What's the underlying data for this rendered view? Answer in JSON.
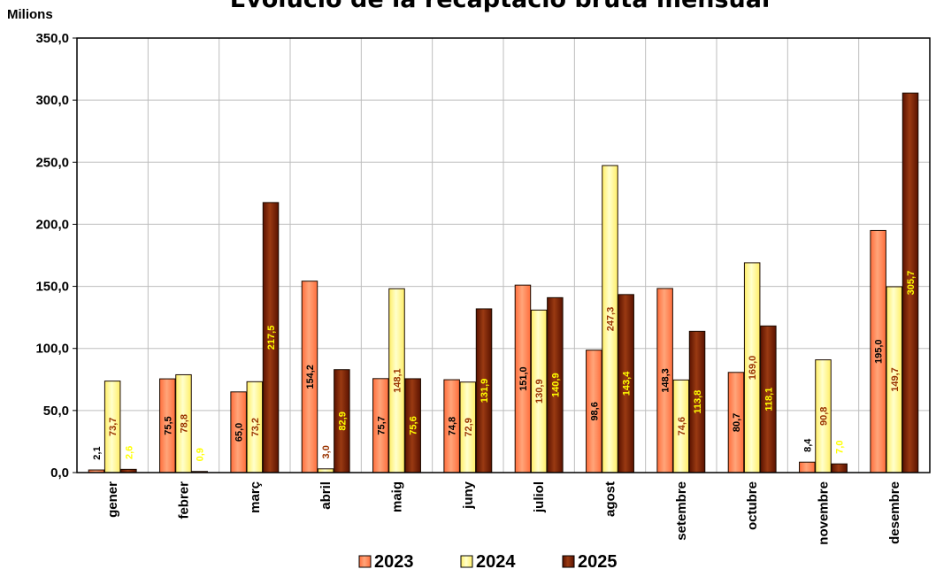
{
  "chart_data": {
    "type": "bar",
    "title": "Evolució de la recaptació bruta mensual",
    "unit_label": "Milions",
    "ylim": [
      0,
      350
    ],
    "yticks": [
      "0,0",
      "50,0",
      "100,0",
      "150,0",
      "200,0",
      "250,0",
      "300,0",
      "350,0"
    ],
    "grid": true,
    "legend_position": "bottom",
    "categories": [
      "gener",
      "febrer",
      "març",
      "abril",
      "maig",
      "juny",
      "juliol",
      "agost",
      "setembre",
      "octubre",
      "novembre",
      "desembre"
    ],
    "series": [
      {
        "name": "2023",
        "color": "#ff8c5a",
        "label_color": "#000000",
        "values": [
          2.1,
          75.5,
          65.0,
          154.2,
          75.7,
          74.8,
          151.0,
          98.6,
          148.3,
          80.7,
          8.4,
          195.0
        ],
        "labels": [
          "2,1",
          "75,5",
          "65,0",
          "154,2",
          "75,7",
          "74,8",
          "151,0",
          "98,6",
          "148,3",
          "80,7",
          "8,4",
          "195,0"
        ]
      },
      {
        "name": "2024",
        "color": "#ffff99",
        "label_color": "#993300",
        "values": [
          73.7,
          78.8,
          73.2,
          3.0,
          148.1,
          72.9,
          130.9,
          247.3,
          74.6,
          169.0,
          90.8,
          149.7
        ],
        "labels": [
          "73,7",
          "78,8",
          "73,2",
          "3,0",
          "148,1",
          "72,9",
          "130,9",
          "247,3",
          "74,6",
          "169,0",
          "90,8",
          "149,7"
        ]
      },
      {
        "name": "2025",
        "color": "#7a1f05",
        "label_color": "#ffff00",
        "values": [
          2.6,
          0.9,
          217.5,
          82.9,
          75.6,
          131.9,
          140.9,
          143.4,
          113.8,
          118.1,
          7.0,
          305.7
        ],
        "labels": [
          "2,6",
          "0,9",
          "217,5",
          "82,9",
          "75,6",
          "131,9",
          "140,9",
          "143,4",
          "113,8",
          "118,1",
          "7,0",
          "305,7"
        ]
      }
    ]
  }
}
